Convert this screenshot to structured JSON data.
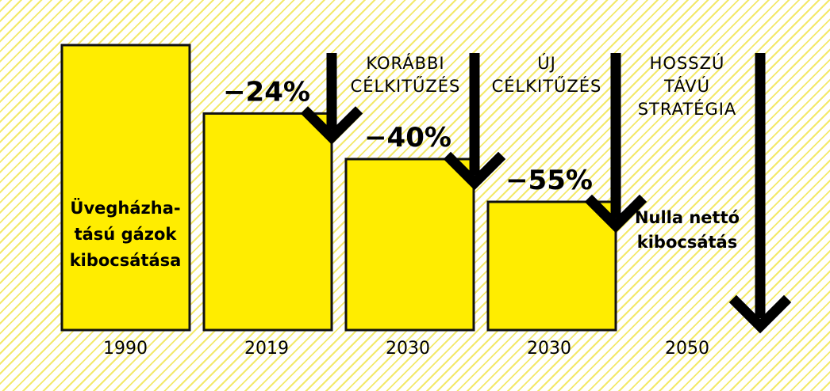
{
  "chart_data": {
    "type": "bar",
    "categories": [
      "1990",
      "2019",
      "2030",
      "2030",
      "2050"
    ],
    "values": [
      100,
      76,
      60,
      45,
      0
    ],
    "bar_labels": [
      "",
      "−24%",
      "−40%",
      "−55%",
      ""
    ],
    "first_bar_label": [
      "Üvegházha-",
      "tású gázok",
      "kibocsátása"
    ],
    "net_zero_label": [
      "Nulla nettó",
      "kibocsátás"
    ],
    "arrow_captions": [
      [
        "KORÁBBI",
        "CÉLKITŰZÉS"
      ],
      [
        "ÚJ",
        "CÉLKITŰZÉS"
      ],
      [
        "HOSSZÚ",
        "TÁVÚ",
        "STRATÉGIA"
      ]
    ],
    "ylim": [
      0,
      100
    ],
    "colors": {
      "bar": "#ffed00",
      "outline": "#111111",
      "arrow": "#000000",
      "hatch": "#f3e96a"
    }
  }
}
